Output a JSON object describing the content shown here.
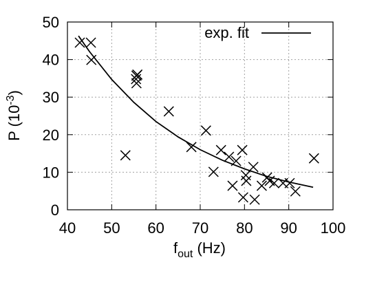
{
  "chart_data": {
    "type": "scatter",
    "xlabel": {
      "base": "f",
      "sub": "out",
      "end": " (Hz)"
    },
    "ylabel": {
      "base": "P (10",
      "sup": "-3",
      "end": ")"
    },
    "xlim": [
      40,
      100
    ],
    "xticks": [
      40,
      50,
      60,
      70,
      80,
      90,
      100
    ],
    "ylim": [
      0,
      50
    ],
    "yticks": [
      0,
      10,
      20,
      30,
      40,
      50
    ],
    "grid": true,
    "legend": "top right",
    "series": [
      {
        "type": "scatter",
        "color": "#000000",
        "x": [
          42.8,
          45.3,
          45.4,
          53.1,
          55.6,
          55.5,
          55.8,
          55.6,
          62.9,
          68.0,
          71.3,
          73.0,
          74.7,
          76.5,
          77.3,
          78.1,
          79.5,
          79.7,
          80.3,
          80.4,
          82.0,
          82.3,
          83.9,
          85.1,
          85.7,
          86.7,
          88.7,
          90.2,
          91.5,
          95.7
        ],
        "values": [
          44.5,
          44.5,
          39.9,
          14.5,
          35.7,
          34.8,
          36.0,
          33.7,
          26.2,
          16.7,
          21.1,
          10.1,
          15.9,
          14.1,
          6.4,
          13.0,
          15.9,
          3.3,
          9.2,
          7.7,
          11.4,
          2.7,
          6.4,
          8.6,
          7.7,
          7.1,
          7.1,
          7.1,
          4.9,
          13.7
        ]
      },
      {
        "type": "line",
        "name": "exp. fit",
        "color": "#000000",
        "x": [
          42.5,
          45,
          50,
          55,
          60,
          65,
          70,
          75,
          80,
          85,
          90,
          95.5
        ],
        "values": [
          46.3,
          42.1,
          34.7,
          28.6,
          23.5,
          19.4,
          16.0,
          13.2,
          10.9,
          8.9,
          7.4,
          6.0
        ]
      }
    ]
  }
}
